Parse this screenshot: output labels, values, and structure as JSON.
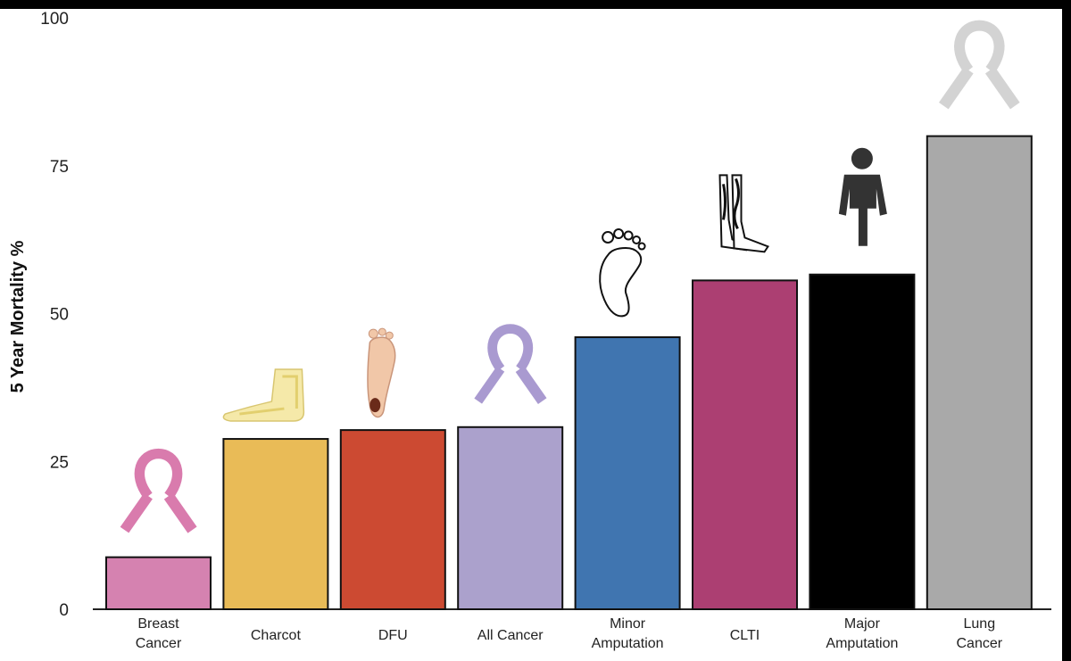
{
  "chart_data": {
    "type": "bar",
    "ylabel": "5 Year Mortality %",
    "xlabel": "",
    "ylim": [
      0,
      100
    ],
    "yticks": [
      0,
      25,
      50,
      75,
      100
    ],
    "grid": false,
    "categories": [
      [
        "Breast",
        "Cancer"
      ],
      [
        "Charcot"
      ],
      [
        "DFU"
      ],
      [
        "All Cancer"
      ],
      [
        "Minor",
        "Amputation"
      ],
      [
        "CLTI"
      ],
      [
        "Major",
        "Amputation"
      ],
      [
        "Lung",
        "Cancer"
      ]
    ],
    "values": [
      8.8,
      28.8,
      30.3,
      30.8,
      46.0,
      55.6,
      56.6,
      80.0
    ],
    "colors": [
      "#d582b0",
      "#e9bb57",
      "#cc4a32",
      "#aba1cc",
      "#4075b0",
      "#ac3f72",
      "#000000",
      "#a9a9a9"
    ],
    "icons": [
      "pink-ribbon-icon",
      "foot-bones-icon",
      "foot-sole-ulcer-icon",
      "lavender-ribbon-icon",
      "footprint-icon",
      "leg-veins-icon",
      "amputee-person-icon",
      "grey-ribbon-icon"
    ]
  }
}
